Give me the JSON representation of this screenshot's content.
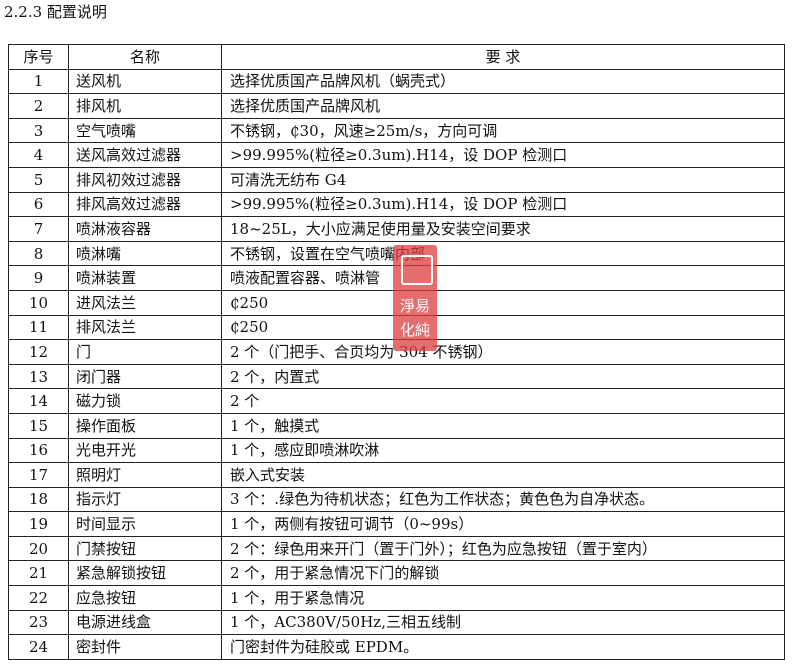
{
  "section_title": "2.2.3 配置说明",
  "table": {
    "headers": [
      "序号",
      "名称",
      "要 求"
    ],
    "rows": [
      {
        "no": "1",
        "name": "送风机",
        "req": "选择优质国产品牌风机（蜗壳式）"
      },
      {
        "no": "2",
        "name": "排风机",
        "req": "选择优质国产品牌风机"
      },
      {
        "no": "3",
        "name": "空气喷嘴",
        "req": "不锈钢，₵30，风速≥25m/s，方向可调"
      },
      {
        "no": "4",
        "name": "送风高效过滤器",
        "req": ">99.995%(粒径≥0.3um).H14，设 DOP 检测口"
      },
      {
        "no": "5",
        "name": "排风初效过滤器",
        "req": "可清洗无纺布 G4"
      },
      {
        "no": "6",
        "name": "排风高效过滤器",
        "req": ">99.995%(粒径≥0.3um).H14，设 DOP 检测口"
      },
      {
        "no": "7",
        "name": "喷淋液容器",
        "req": "18~25L，大小应满足使用量及安装空间要求"
      },
      {
        "no": "8",
        "name": "喷淋嘴",
        "req": "不锈钢，设置在空气喷嘴内部"
      },
      {
        "no": "9",
        "name": "喷淋装置",
        "req": "喷液配置容器、喷淋管"
      },
      {
        "no": "10",
        "name": "进风法兰",
        "req": "₵250"
      },
      {
        "no": "11",
        "name": "排风法兰",
        "req": "₵250"
      },
      {
        "no": "12",
        "name": "门",
        "req": "2 个（门把手、合页均为 304 不锈钢）"
      },
      {
        "no": "13",
        "name": "闭门器",
        "req": "2 个，内置式"
      },
      {
        "no": "14",
        "name": "磁力锁",
        "req": "2 个"
      },
      {
        "no": "15",
        "name": "操作面板",
        "req": "1 个，触摸式"
      },
      {
        "no": "16",
        "name": "光电开光",
        "req": "1 个，感应即喷淋吹淋"
      },
      {
        "no": "17",
        "name": "照明灯",
        "req": "嵌入式安装"
      },
      {
        "no": "18",
        "name": "指示灯",
        "req": "3 个：.绿色为待机状态；红色为工作状态；黄色色为自净状态。"
      },
      {
        "no": "19",
        "name": "时间显示",
        "req": "1 个，两侧有按钮可调节（0~99s）"
      },
      {
        "no": "20",
        "name": "门禁按钮",
        "req": "2 个：绿色用来开门（置于门外）；红色为应急按钮（置于室内）"
      },
      {
        "no": "21",
        "name": "紧急解锁按钮",
        "req": "2 个，用于紧急情况下门的解锁"
      },
      {
        "no": "22",
        "name": "应急按钮",
        "req": "1 个，用于紧急情况"
      },
      {
        "no": "23",
        "name": "电源进线盒",
        "req": "1 个，AC380V/50Hz,三相五线制"
      },
      {
        "no": "24",
        "name": "密封件",
        "req": "门密封件为硅胶或 EPDM。"
      }
    ]
  },
  "stamp": {
    "text": "淨易 化純",
    "color": "#dc3c3c"
  }
}
